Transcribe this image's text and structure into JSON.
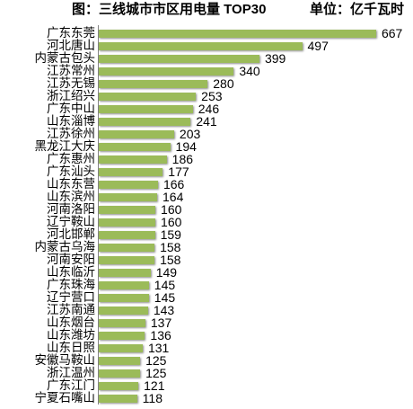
{
  "colors": {
    "bar": "#9BBB59",
    "axis": "#868686",
    "text": "#000000"
  },
  "chart_data": {
    "type": "bar",
    "orientation": "horizontal",
    "title": "图：三线城市市区用电量 TOP30",
    "unit_label": "单位：亿千瓦时",
    "categories": [
      "广东东莞",
      "河北唐山",
      "内蒙古包头",
      "江苏常州",
      "江苏无锡",
      "浙江绍兴",
      "广东中山",
      "山东淄博",
      "江苏徐州",
      "黑龙江大庆",
      "广东惠州",
      "广东汕头",
      "山东东营",
      "山东滨州",
      "河南洛阳",
      "辽宁鞍山",
      "河北邯郸",
      "内蒙古乌海",
      "河南安阳",
      "山东临沂",
      "广东珠海",
      "辽宁营口",
      "江苏南通",
      "山东烟台",
      "山东潍坊",
      "山东日照",
      "安徽马鞍山",
      "浙江温州",
      "广东江门",
      "宁夏石嘴山"
    ],
    "values": [
      667,
      497,
      399,
      340,
      280,
      253,
      246,
      241,
      203,
      194,
      186,
      177,
      166,
      164,
      160,
      160,
      159,
      158,
      158,
      149,
      145,
      145,
      143,
      137,
      136,
      131,
      125,
      125,
      121,
      118
    ],
    "data_labels": true,
    "xlim": [
      30,
      700
    ],
    "grid": false,
    "legend": "none"
  }
}
